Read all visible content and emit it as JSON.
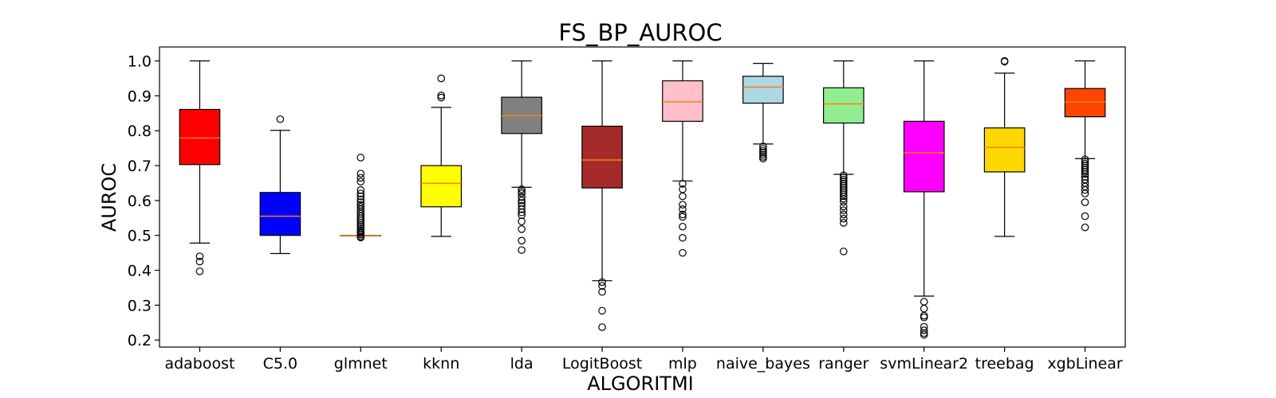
{
  "chart_data": {
    "type": "boxplot",
    "title": "FS_BP_AUROC",
    "xlabel": "ALGORITMI",
    "ylabel": "AUROC",
    "ylim": [
      0.18,
      1.04
    ],
    "yticks": [
      "0.2",
      "0.3",
      "0.4",
      "0.5",
      "0.6",
      "0.7",
      "0.8",
      "0.9",
      "1.0"
    ],
    "grid": false,
    "median_color": "#ff7f0e",
    "boxes": [
      {
        "label": "adaboost",
        "color": "#ff0000",
        "whislo": 0.478,
        "q1": 0.703,
        "med": 0.779,
        "q3": 0.861,
        "whishi": 1.0,
        "fliers": [
          0.44,
          0.425,
          0.397
        ]
      },
      {
        "label": "C5.0",
        "color": "#0000ff",
        "whislo": 0.448,
        "q1": 0.5,
        "med": 0.555,
        "q3": 0.623,
        "whishi": 0.801,
        "fliers": [
          0.833
        ]
      },
      {
        "label": "glmnet",
        "color": "#ffffff",
        "whislo": 0.5,
        "q1": 0.5,
        "med": 0.5,
        "q3": 0.5,
        "whishi": 0.5,
        "fliers": [
          0.723,
          0.677,
          0.665,
          0.654,
          0.63,
          0.62,
          0.612,
          0.603,
          0.595,
          0.588,
          0.582,
          0.575,
          0.568,
          0.562,
          0.555,
          0.549,
          0.543,
          0.537,
          0.531,
          0.526,
          0.52,
          0.515,
          0.51,
          0.506,
          0.502,
          0.497,
          0.494
        ]
      },
      {
        "label": "kknn",
        "color": "#ffff00",
        "whislo": 0.497,
        "q1": 0.582,
        "med": 0.649,
        "q3": 0.7,
        "whishi": 0.867,
        "fliers": [
          0.95,
          0.901,
          0.895
        ]
      },
      {
        "label": "lda",
        "color": "#808080",
        "whislo": 0.638,
        "q1": 0.792,
        "med": 0.843,
        "q3": 0.896,
        "whishi": 1.0,
        "fliers": [
          0.632,
          0.625,
          0.62,
          0.61,
          0.6,
          0.593,
          0.585,
          0.575,
          0.566,
          0.558,
          0.54,
          0.518,
          0.485,
          0.458
        ]
      },
      {
        "label": "LogitBoost",
        "color": "#a52a2a",
        "whislo": 0.37,
        "q1": 0.636,
        "med": 0.716,
        "q3": 0.813,
        "whishi": 1.0,
        "fliers": [
          0.366,
          0.355,
          0.338,
          0.284,
          0.237
        ]
      },
      {
        "label": "mlp",
        "color": "#ffc0cb",
        "whislo": 0.656,
        "q1": 0.827,
        "med": 0.883,
        "q3": 0.943,
        "whishi": 1.0,
        "fliers": [
          0.648,
          0.632,
          0.612,
          0.588,
          0.575,
          0.56,
          0.553,
          0.525,
          0.493,
          0.45
        ]
      },
      {
        "label": "naive_bayes",
        "color": "#add8e6",
        "whislo": 0.762,
        "q1": 0.879,
        "med": 0.925,
        "q3": 0.956,
        "whishi": 0.993,
        "fliers": [
          0.755,
          0.748,
          0.742,
          0.737,
          0.731,
          0.725,
          0.72
        ]
      },
      {
        "label": "ranger",
        "color": "#90ee90",
        "whislo": 0.675,
        "q1": 0.822,
        "med": 0.877,
        "q3": 0.923,
        "whishi": 1.0,
        "fliers": [
          0.672,
          0.666,
          0.66,
          0.654,
          0.648,
          0.642,
          0.636,
          0.63,
          0.624,
          0.618,
          0.612,
          0.605,
          0.596,
          0.583,
          0.572,
          0.56,
          0.548,
          0.536,
          0.454
        ]
      },
      {
        "label": "svmLinear2",
        "color": "#ff00ff",
        "whislo": 0.326,
        "q1": 0.625,
        "med": 0.737,
        "q3": 0.827,
        "whishi": 1.0,
        "fliers": [
          0.31,
          0.29,
          0.27,
          0.265,
          0.238,
          0.228,
          0.22,
          0.215
        ]
      },
      {
        "label": "treebag",
        "color": "#ffd700",
        "whislo": 0.497,
        "q1": 0.682,
        "med": 0.752,
        "q3": 0.808,
        "whishi": 0.965,
        "fliers": [
          1.0,
          0.998
        ]
      },
      {
        "label": "xgbLinear",
        "color": "#ff4500",
        "whislo": 0.72,
        "q1": 0.84,
        "med": 0.882,
        "q3": 0.921,
        "whishi": 1.0,
        "fliers": [
          0.718,
          0.712,
          0.706,
          0.7,
          0.694,
          0.688,
          0.682,
          0.676,
          0.668,
          0.66,
          0.65,
          0.64,
          0.63,
          0.62,
          0.595,
          0.555,
          0.523
        ]
      }
    ]
  }
}
